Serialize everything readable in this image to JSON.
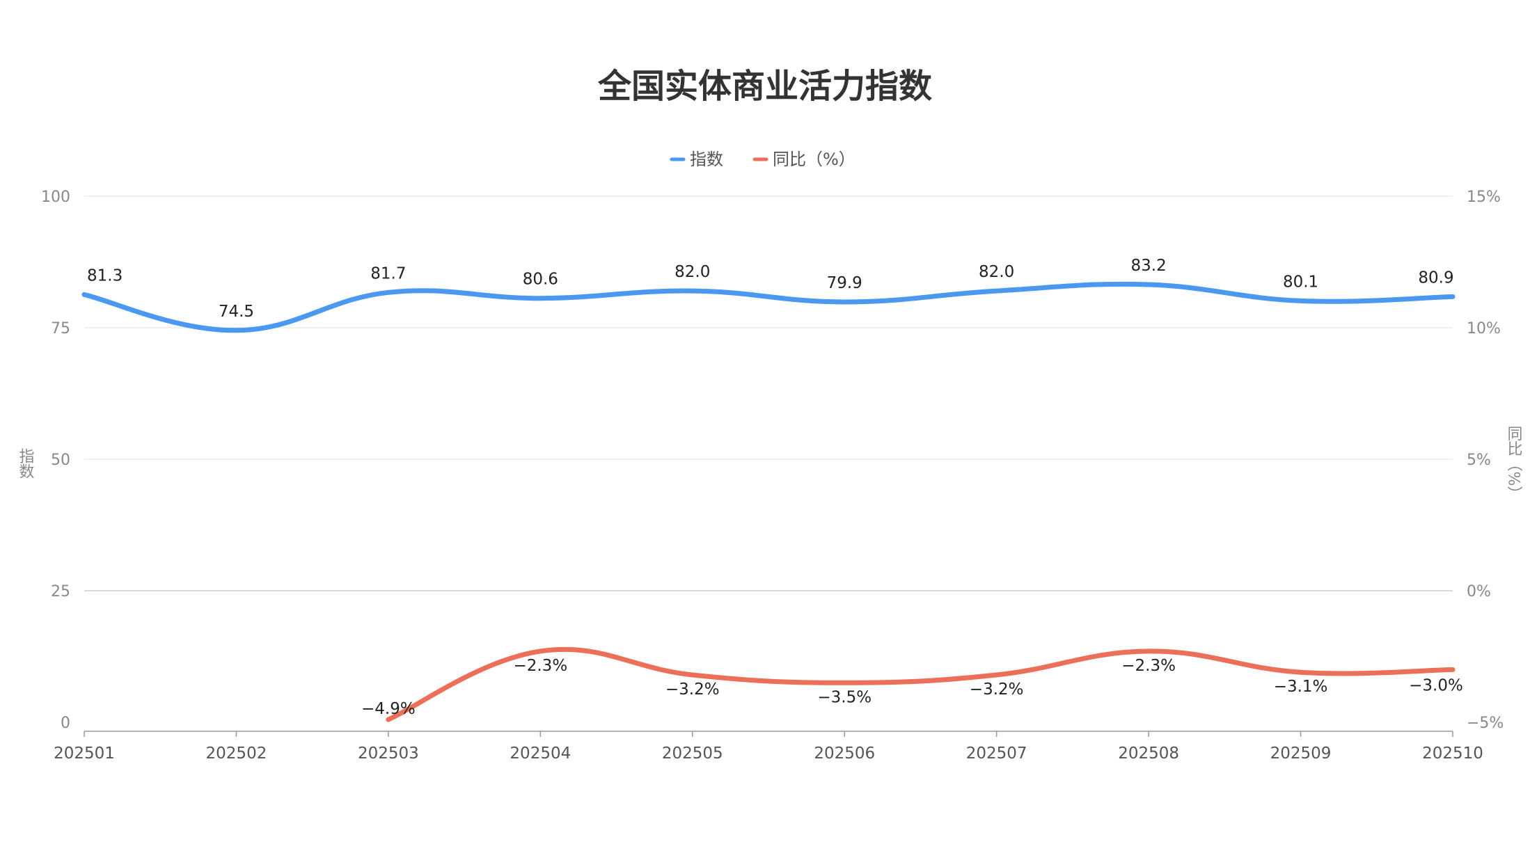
{
  "chart_data": {
    "type": "line",
    "title": "全国实体商业活力指数",
    "categories": [
      "202501",
      "202502",
      "202503",
      "202504",
      "202505",
      "202506",
      "202507",
      "202508",
      "202509",
      "202510"
    ],
    "series": [
      {
        "name": "指数",
        "axis": "left",
        "color": "#4a98f0",
        "values": [
          81.3,
          74.5,
          81.7,
          80.6,
          82.0,
          79.9,
          82.0,
          83.2,
          80.1,
          80.9
        ],
        "labels": [
          "81.3",
          "74.5",
          "81.7",
          "80.6",
          "82.0",
          "79.9",
          "82.0",
          "83.2",
          "80.1",
          "80.9"
        ]
      },
      {
        "name": "同比（%）",
        "axis": "right",
        "color": "#ec6f5a",
        "values": [
          null,
          null,
          -4.9,
          -2.3,
          -3.2,
          -3.5,
          -3.2,
          -2.3,
          -3.1,
          -3.0
        ],
        "labels": [
          "",
          "",
          "−4.9%",
          "−2.3%",
          "−3.2%",
          "−3.5%",
          "−3.2%",
          "−2.3%",
          "−3.1%",
          "−3.0%"
        ]
      }
    ],
    "left_axis": {
      "label": "指数",
      "ylim": [
        0,
        100
      ],
      "ticks": [
        0,
        25,
        50,
        75,
        100
      ],
      "tick_labels": [
        "0",
        "25",
        "50",
        "75",
        "100"
      ]
    },
    "right_axis": {
      "label": "同比（%）",
      "ylim": [
        -5,
        15
      ],
      "ticks": [
        -5,
        0,
        5,
        10,
        15
      ],
      "tick_labels": [
        "−5%",
        "0%",
        "5%",
        "10%",
        "15%"
      ]
    },
    "grid": true,
    "legend_position": "top-center",
    "colors": {
      "grid": "#e6e6e6",
      "zero_line": "#cccccc",
      "axis": "#999999"
    }
  }
}
